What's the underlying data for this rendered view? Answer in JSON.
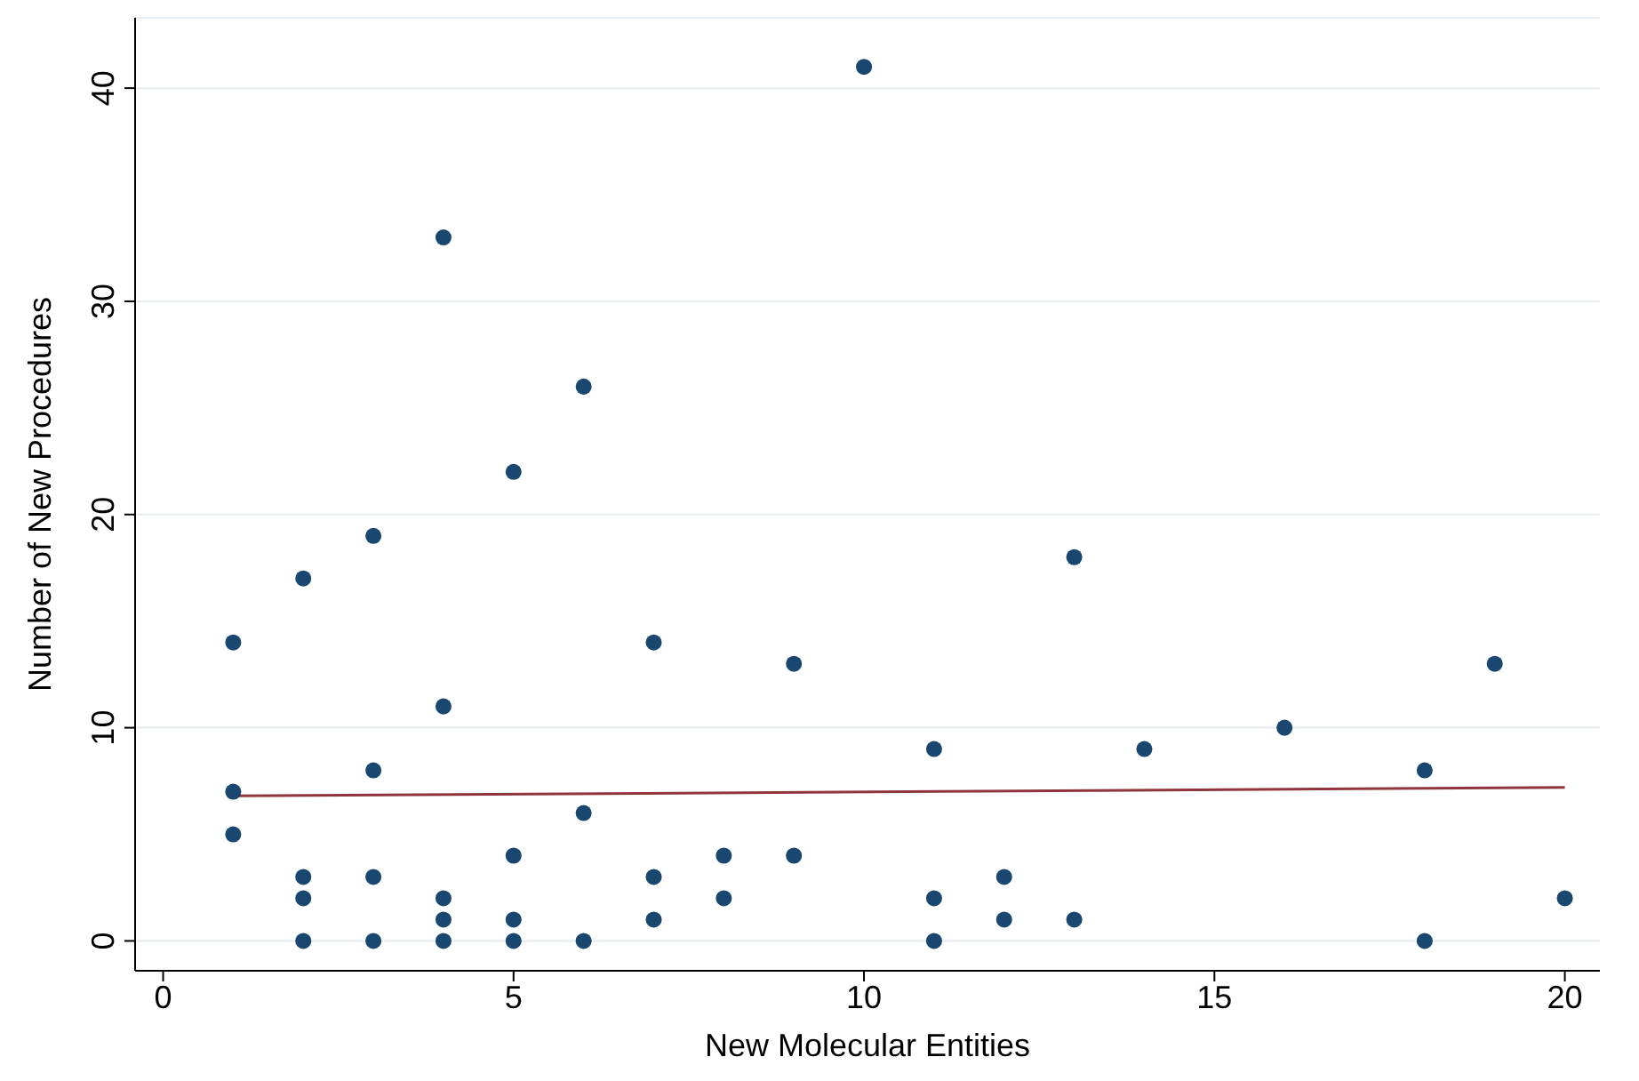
{
  "chart_data": {
    "type": "scatter",
    "xlabel": "New Molecular Entities",
    "ylabel": "Number of New Procedures",
    "xlim": [
      -0.4,
      20.5
    ],
    "ylim": [
      -1.4,
      43.3
    ],
    "xticks": [
      0,
      5,
      10,
      15,
      20
    ],
    "yticks": [
      0,
      10,
      20,
      30,
      40
    ],
    "grid": "y",
    "series": [
      {
        "color": "#1a476f",
        "marker": "circle",
        "x": [
          1,
          1,
          1,
          2,
          2,
          2,
          2,
          3,
          3,
          3,
          3,
          4,
          4,
          4,
          4,
          4,
          5,
          5,
          5,
          5,
          6,
          6,
          6,
          7,
          7,
          7,
          8,
          8,
          9,
          9,
          10,
          11,
          11,
          11,
          12,
          12,
          13,
          13,
          14,
          16,
          18,
          18,
          19,
          20
        ],
        "values": [
          14,
          7,
          5,
          17,
          3,
          2,
          0,
          19,
          8,
          3,
          0,
          33,
          11,
          2,
          1,
          0,
          22,
          4,
          1,
          0,
          26,
          6,
          0,
          14,
          3,
          1,
          4,
          2,
          13,
          4,
          41,
          9,
          2,
          0,
          3,
          1,
          18,
          1,
          9,
          10,
          8,
          0,
          13,
          2
        ]
      },
      {
        "type": "line",
        "color": "#90353b",
        "marker": "none",
        "line_style": "solid",
        "x": [
          1,
          20
        ],
        "values": [
          6.8,
          7.2
        ]
      }
    ]
  }
}
